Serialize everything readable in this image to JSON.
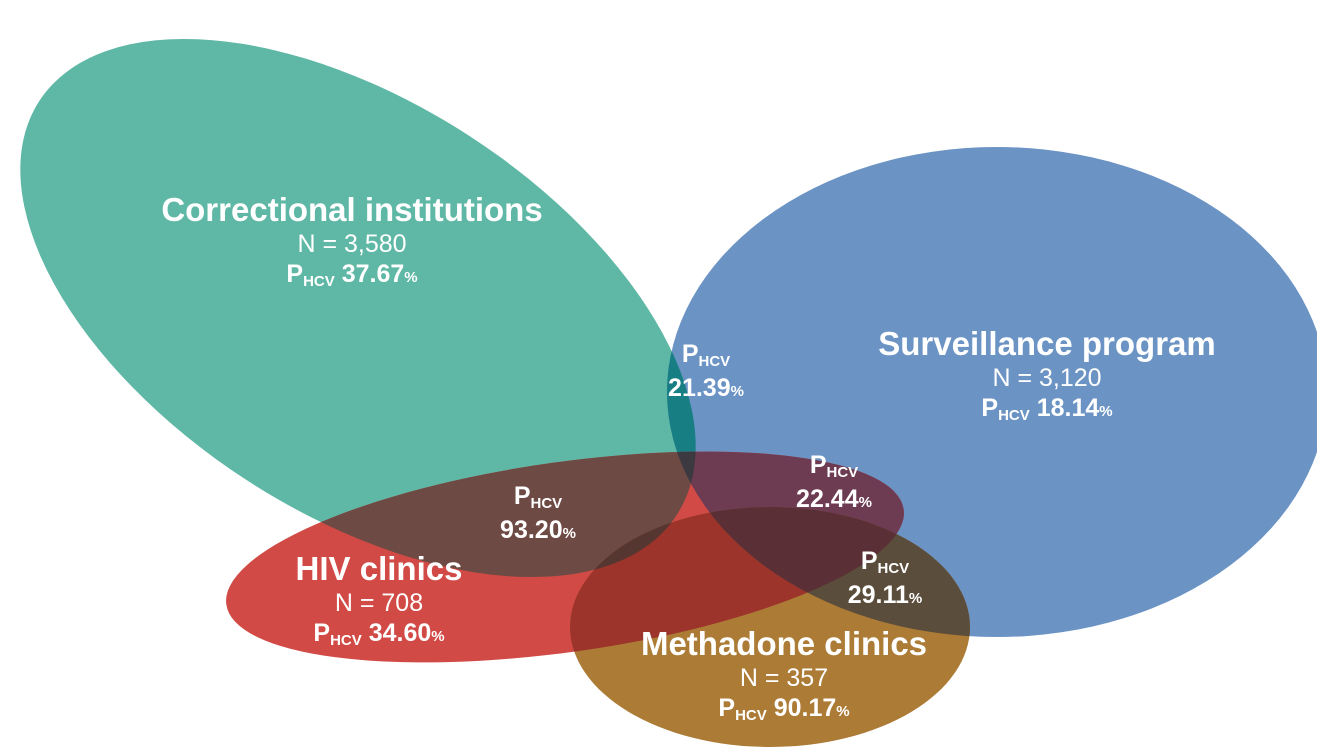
{
  "colors": {
    "correctional": "#5fb8a5",
    "surveillance": "#6b93c4",
    "hiv": "#d14a45",
    "methadone": "#ac7b36"
  },
  "sets": {
    "correctional": {
      "name": "Correctional institutions",
      "n": "N = 3,580",
      "p_letter": "P",
      "p_sub": "HCV",
      "p_value": "37.67",
      "p_unit": "%"
    },
    "surveillance": {
      "name": "Surveillance program",
      "n": "N = 3,120",
      "p_letter": "P",
      "p_sub": "HCV",
      "p_value": "18.14",
      "p_unit": "%"
    },
    "hiv": {
      "name": "HIV clinics",
      "n": "N = 708",
      "p_letter": "P",
      "p_sub": "HCV",
      "p_value": "34.60",
      "p_unit": "%"
    },
    "methadone": {
      "name": "Methadone clinics",
      "n": "N = 357",
      "p_letter": "P",
      "p_sub": "HCV",
      "p_value": "90.17",
      "p_unit": "%"
    }
  },
  "overlaps": {
    "correctional_surveillance": {
      "p_letter": "P",
      "p_sub": "HCV",
      "p_value": "21.39",
      "p_unit": "%"
    },
    "correctional_hiv": {
      "p_letter": "P",
      "p_sub": "HCV",
      "p_value": "93.20",
      "p_unit": "%"
    },
    "surveillance_hiv": {
      "p_letter": "P",
      "p_sub": "HCV",
      "p_value": "22.44",
      "p_unit": "%"
    },
    "surveillance_methadone": {
      "p_letter": "P",
      "p_sub": "HCV",
      "p_value": "29.11",
      "p_unit": "%"
    }
  }
}
